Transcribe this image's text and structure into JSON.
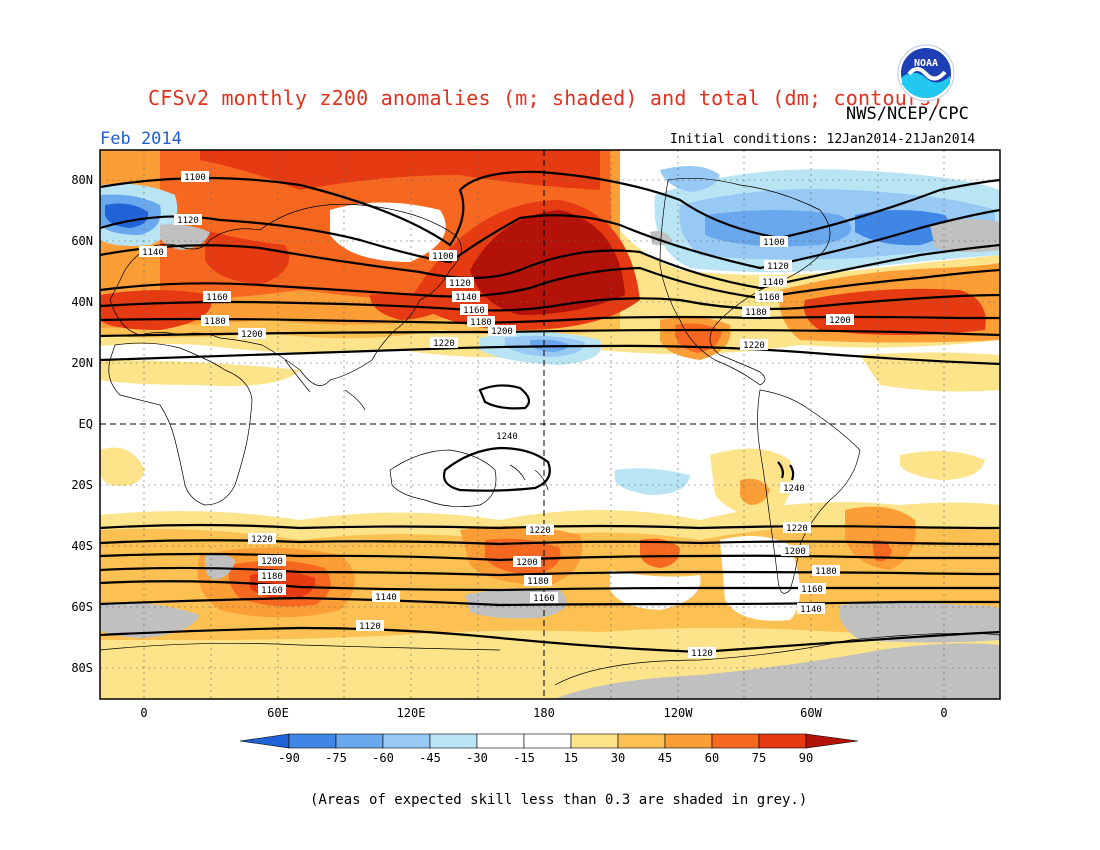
{
  "title": "CFSv2 monthly z200 anomalies (m; shaded) and total (dm; contours)",
  "agency": "NWS/NCEP/CPC",
  "logo_text": "NOAA",
  "month_label": "Feb 2014",
  "initial_conditions": "Initial conditions: 12Jan2014-21Jan2014",
  "footnote": "(Areas of expected skill less than 0.3 are shaded in grey.)",
  "map": {
    "lat_labels": [
      "80N",
      "60N",
      "40N",
      "20N",
      "EQ",
      "20S",
      "40S",
      "60S",
      "80S"
    ],
    "lon_labels": [
      "0",
      "60E",
      "120E",
      "180",
      "120W",
      "60W",
      "0"
    ],
    "colors": {
      "neg90": "#1f63d6",
      "neg75": "#3f86e6",
      "neg60": "#6aa8ee",
      "neg45": "#98c9f5",
      "neg30": "#b9e4f4",
      "neutral": "#ffffff",
      "pos15": "#fde38a",
      "pos30": "#fdc052",
      "pos45": "#fb9e35",
      "pos60": "#f66820",
      "pos75": "#e63a12",
      "pos90": "#b31208",
      "skill_grey": "#c0c0c0"
    },
    "contour_labels": [
      "1100",
      "1120",
      "1140",
      "1160",
      "1180",
      "1200",
      "1100",
      "1120",
      "1140",
      "1160",
      "1180",
      "1200",
      "1220",
      "1100",
      "1120",
      "1140",
      "1160",
      "1180",
      "1200",
      "1220",
      "1240",
      "1240",
      "1220",
      "1200",
      "1180",
      "1160",
      "1220",
      "1200",
      "1180",
      "1160",
      "1140",
      "1120",
      "1220",
      "1200",
      "1180",
      "1160",
      "1140",
      "1120"
    ]
  },
  "colorbar": {
    "tick_labels": [
      "-90",
      "-75",
      "-60",
      "-45",
      "-30",
      "-15",
      "15",
      "30",
      "45",
      "60",
      "75",
      "90"
    ]
  }
}
